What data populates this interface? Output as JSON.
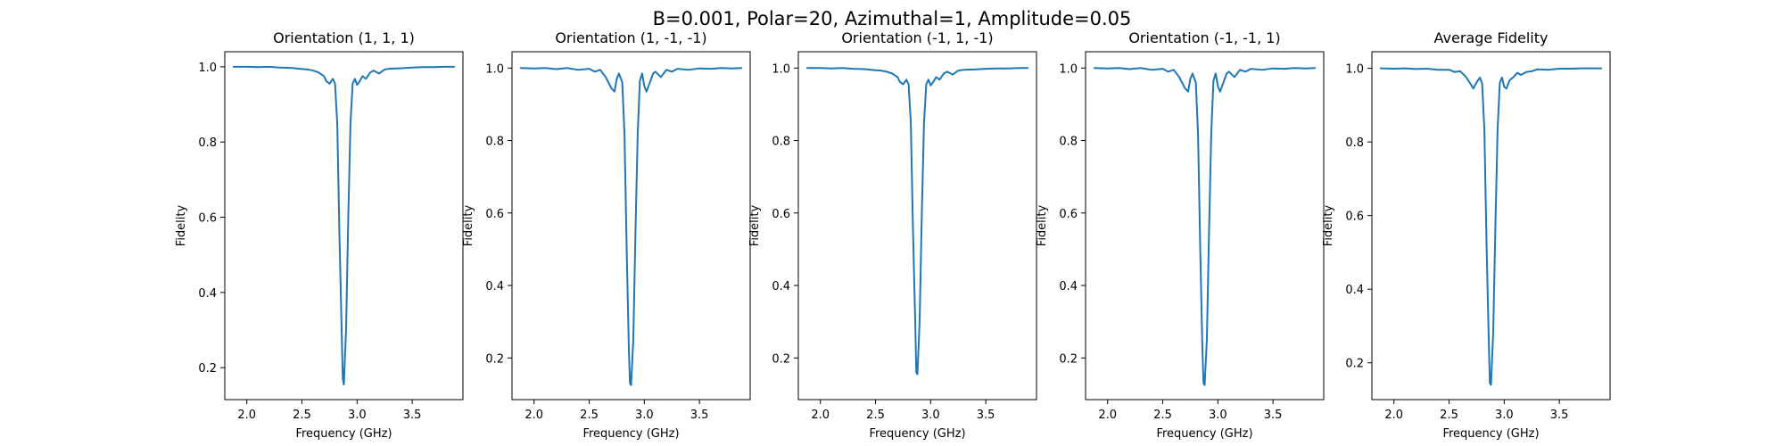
{
  "suptitle": "B=0.001, Polar=20, Azimuthal=1, Amplitude=0.05",
  "colors": {
    "line": "#1f77b4",
    "axes": "#000000",
    "background": "#ffffff"
  },
  "chart_data": [
    {
      "type": "line",
      "title": "Orientation (1, 1, 1)",
      "xlabel": "Frequency (GHz)",
      "ylabel": "Fidelity",
      "xlim": [
        1.8,
        3.96
      ],
      "ylim": [
        0.115,
        1.04
      ],
      "xticks": [
        2.0,
        2.5,
        3.0,
        3.5
      ],
      "xtick_labels": [
        "2.0",
        "2.5",
        "3.0",
        "3.5"
      ],
      "yticks": [
        0.2,
        0.4,
        0.6,
        0.8,
        1.0
      ],
      "ytick_labels": [
        "0.2",
        "0.4",
        "0.6",
        "0.8",
        "1.0"
      ],
      "grid": false,
      "series": [
        {
          "x": [
            1.88,
            2.0,
            2.1,
            2.2,
            2.3,
            2.4,
            2.5,
            2.55,
            2.6,
            2.65,
            2.7,
            2.72,
            2.75,
            2.78,
            2.8,
            2.82,
            2.84,
            2.86,
            2.87,
            2.88,
            2.9,
            2.92,
            2.94,
            2.96,
            2.98,
            3.0,
            3.02,
            3.05,
            3.08,
            3.12,
            3.15,
            3.2,
            3.25,
            3.3,
            3.4,
            3.5,
            3.6,
            3.7,
            3.8,
            3.88
          ],
          "y": [
            1.0,
            1.0,
            0.999,
            1.0,
            0.998,
            0.997,
            0.994,
            0.993,
            0.99,
            0.985,
            0.975,
            0.962,
            0.955,
            0.968,
            0.955,
            0.85,
            0.55,
            0.3,
            0.17,
            0.155,
            0.3,
            0.6,
            0.85,
            0.955,
            0.968,
            0.952,
            0.96,
            0.975,
            0.968,
            0.985,
            0.99,
            0.982,
            0.993,
            0.995,
            0.996,
            0.998,
            0.999,
            0.999,
            1.0,
            1.0
          ]
        }
      ]
    },
    {
      "type": "line",
      "title": "Orientation (1, -1, -1)",
      "xlabel": "Frequency (GHz)",
      "ylabel": "Fidelity",
      "xlim": [
        1.8,
        3.96
      ],
      "ylim": [
        0.085,
        1.045
      ],
      "xticks": [
        2.0,
        2.5,
        3.0,
        3.5
      ],
      "xtick_labels": [
        "2.0",
        "2.5",
        "3.0",
        "3.5"
      ],
      "yticks": [
        0.2,
        0.4,
        0.6,
        0.8,
        1.0
      ],
      "ytick_labels": [
        "0.2",
        "0.4",
        "0.6",
        "0.8",
        "1.0"
      ],
      "grid": false,
      "series": [
        {
          "x": [
            1.88,
            2.0,
            2.1,
            2.2,
            2.3,
            2.4,
            2.5,
            2.55,
            2.6,
            2.65,
            2.7,
            2.73,
            2.75,
            2.77,
            2.8,
            2.82,
            2.84,
            2.86,
            2.87,
            2.88,
            2.9,
            2.92,
            2.94,
            2.96,
            2.98,
            3.0,
            3.02,
            3.05,
            3.08,
            3.1,
            3.15,
            3.2,
            3.25,
            3.3,
            3.4,
            3.5,
            3.6,
            3.7,
            3.8,
            3.88
          ],
          "y": [
            1.0,
            0.999,
            1.0,
            0.997,
            1.0,
            0.995,
            0.998,
            0.99,
            0.995,
            0.975,
            0.945,
            0.935,
            0.97,
            0.985,
            0.96,
            0.82,
            0.5,
            0.22,
            0.13,
            0.125,
            0.25,
            0.55,
            0.82,
            0.965,
            0.985,
            0.95,
            0.935,
            0.96,
            0.985,
            0.99,
            0.975,
            0.995,
            0.99,
            0.998,
            0.995,
            0.999,
            0.998,
            1.0,
            0.999,
            1.0
          ]
        }
      ]
    },
    {
      "type": "line",
      "title": "Orientation (-1, 1, -1)",
      "xlabel": "Frequency (GHz)",
      "ylabel": "Fidelity",
      "xlim": [
        1.8,
        3.96
      ],
      "ylim": [
        0.085,
        1.045
      ],
      "xticks": [
        2.0,
        2.5,
        3.0,
        3.5
      ],
      "xtick_labels": [
        "2.0",
        "2.5",
        "3.0",
        "3.5"
      ],
      "yticks": [
        0.2,
        0.4,
        0.6,
        0.8,
        1.0
      ],
      "ytick_labels": [
        "0.2",
        "0.4",
        "0.6",
        "0.8",
        "1.0"
      ],
      "grid": false,
      "series": [
        {
          "x": [
            1.88,
            2.0,
            2.1,
            2.2,
            2.3,
            2.4,
            2.5,
            2.55,
            2.6,
            2.65,
            2.7,
            2.72,
            2.75,
            2.78,
            2.8,
            2.82,
            2.84,
            2.86,
            2.87,
            2.88,
            2.9,
            2.92,
            2.94,
            2.96,
            2.98,
            3.0,
            3.02,
            3.05,
            3.08,
            3.12,
            3.15,
            3.2,
            3.25,
            3.3,
            3.4,
            3.5,
            3.6,
            3.7,
            3.8,
            3.88
          ],
          "y": [
            1.0,
            1.0,
            0.999,
            1.0,
            0.998,
            0.997,
            0.994,
            0.993,
            0.99,
            0.985,
            0.975,
            0.962,
            0.955,
            0.968,
            0.955,
            0.85,
            0.55,
            0.3,
            0.16,
            0.155,
            0.3,
            0.6,
            0.85,
            0.955,
            0.968,
            0.952,
            0.96,
            0.975,
            0.968,
            0.985,
            0.99,
            0.982,
            0.993,
            0.995,
            0.996,
            0.998,
            0.999,
            0.999,
            1.0,
            1.0
          ]
        }
      ]
    },
    {
      "type": "line",
      "title": "Orientation (-1, -1, 1)",
      "xlabel": "Frequency (GHz)",
      "ylabel": "Fidelity",
      "xlim": [
        1.8,
        3.96
      ],
      "ylim": [
        0.085,
        1.045
      ],
      "xticks": [
        2.0,
        2.5,
        3.0,
        3.5
      ],
      "xtick_labels": [
        "2.0",
        "2.5",
        "3.0",
        "3.5"
      ],
      "yticks": [
        0.2,
        0.4,
        0.6,
        0.8,
        1.0
      ],
      "ytick_labels": [
        "0.2",
        "0.4",
        "0.6",
        "0.8",
        "1.0"
      ],
      "grid": false,
      "series": [
        {
          "x": [
            1.88,
            2.0,
            2.1,
            2.2,
            2.3,
            2.4,
            2.5,
            2.55,
            2.6,
            2.65,
            2.7,
            2.73,
            2.75,
            2.77,
            2.8,
            2.82,
            2.84,
            2.86,
            2.87,
            2.88,
            2.9,
            2.92,
            2.94,
            2.96,
            2.98,
            3.0,
            3.02,
            3.05,
            3.08,
            3.1,
            3.15,
            3.2,
            3.25,
            3.3,
            3.4,
            3.5,
            3.6,
            3.7,
            3.8,
            3.88
          ],
          "y": [
            1.0,
            0.999,
            1.0,
            0.997,
            1.0,
            0.995,
            0.998,
            0.99,
            0.995,
            0.975,
            0.945,
            0.935,
            0.97,
            0.985,
            0.96,
            0.82,
            0.5,
            0.22,
            0.13,
            0.125,
            0.25,
            0.55,
            0.82,
            0.965,
            0.985,
            0.95,
            0.935,
            0.96,
            0.985,
            0.99,
            0.975,
            0.995,
            0.99,
            0.998,
            0.995,
            0.999,
            0.998,
            1.0,
            0.999,
            1.0
          ]
        }
      ]
    },
    {
      "type": "line",
      "title": "Average Fidelity",
      "xlabel": "Frequency (GHz)",
      "ylabel": "Fidelity",
      "xlim": [
        1.8,
        3.96
      ],
      "ylim": [
        0.1,
        1.045
      ],
      "xticks": [
        2.0,
        2.5,
        3.0,
        3.5
      ],
      "xtick_labels": [
        "2.0",
        "2.5",
        "3.0",
        "3.5"
      ],
      "yticks": [
        0.2,
        0.4,
        0.6,
        0.8,
        1.0
      ],
      "ytick_labels": [
        "0.2",
        "0.4",
        "0.6",
        "0.8",
        "1.0"
      ],
      "grid": false,
      "series": [
        {
          "x": [
            1.88,
            2.0,
            2.1,
            2.2,
            2.3,
            2.4,
            2.5,
            2.55,
            2.6,
            2.65,
            2.7,
            2.72,
            2.75,
            2.78,
            2.8,
            2.82,
            2.84,
            2.86,
            2.87,
            2.88,
            2.9,
            2.92,
            2.94,
            2.96,
            2.98,
            3.0,
            3.02,
            3.05,
            3.08,
            3.12,
            3.15,
            3.2,
            3.25,
            3.3,
            3.4,
            3.5,
            3.6,
            3.7,
            3.8,
            3.88
          ],
          "y": [
            1.0,
            0.999,
            1.0,
            0.998,
            0.999,
            0.996,
            0.996,
            0.99,
            0.992,
            0.978,
            0.955,
            0.945,
            0.962,
            0.975,
            0.958,
            0.835,
            0.52,
            0.26,
            0.145,
            0.14,
            0.28,
            0.57,
            0.835,
            0.96,
            0.975,
            0.95,
            0.945,
            0.968,
            0.975,
            0.988,
            0.982,
            0.99,
            0.992,
            0.997,
            0.996,
            0.999,
            0.999,
            1.0,
            1.0,
            1.0
          ]
        }
      ]
    }
  ]
}
